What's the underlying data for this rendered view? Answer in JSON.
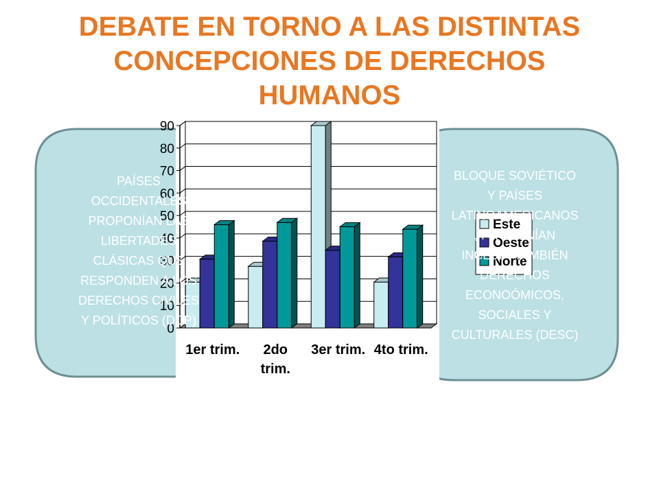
{
  "slide": {
    "title_lines": [
      "DEBATE EN TORNO A LAS DISTINTAS",
      "CONCEPCIONES DE DERECHOS",
      "HUMANOS"
    ]
  },
  "left_bubble": {
    "text_lines": [
      "PAÍSES",
      "OCCIDENTALES",
      "PROPONÍAN LAS",
      "LIBERTADES",
      "CLÁSICAS QUE",
      "RESPONDEN A LOS",
      "DERECHOS CIVILES",
      "Y POLÍTICOS (DCP)"
    ]
  },
  "right_bubble": {
    "text_lines": [
      "BLOQUE SOVIÉTICO",
      "Y PAÍSES",
      "LATINOAMERICANOS",
      ", PROPONÍAN",
      "INCLUIR TAMBIÉN",
      "DERECHOS",
      "ECONOÓMICOS,",
      "SOCIALES Y",
      "CULTURALES (DESC)"
    ]
  },
  "colors": {
    "title": "#E87722",
    "bubble_fill": "#BCE0E4",
    "bubble_stroke": "#6E8F94",
    "bubble_text": "#FFFFFF",
    "este": "#C9ECF0",
    "oeste": "#333399",
    "norte": "#009999"
  },
  "chart_data": {
    "type": "bar",
    "categories": [
      [
        "1er trim."
      ],
      [
        "2do",
        "trim."
      ],
      [
        "3er trim."
      ],
      [
        "4to trim."
      ]
    ],
    "series": [
      {
        "name": "Este",
        "values": [
          20.4,
          27.4,
          90,
          20.4
        ]
      },
      {
        "name": "Oeste",
        "values": [
          30.6,
          38.6,
          34.6,
          31.6
        ]
      },
      {
        "name": "Norte",
        "values": [
          45.9,
          46.9,
          45,
          43.9
        ]
      }
    ],
    "ylim": [
      0,
      90
    ],
    "yticks": [
      "0",
      "10",
      "20",
      "30",
      "40",
      "50",
      "60",
      "70",
      "80",
      "90"
    ],
    "grid": true,
    "legend": "right",
    "style": "3d"
  }
}
